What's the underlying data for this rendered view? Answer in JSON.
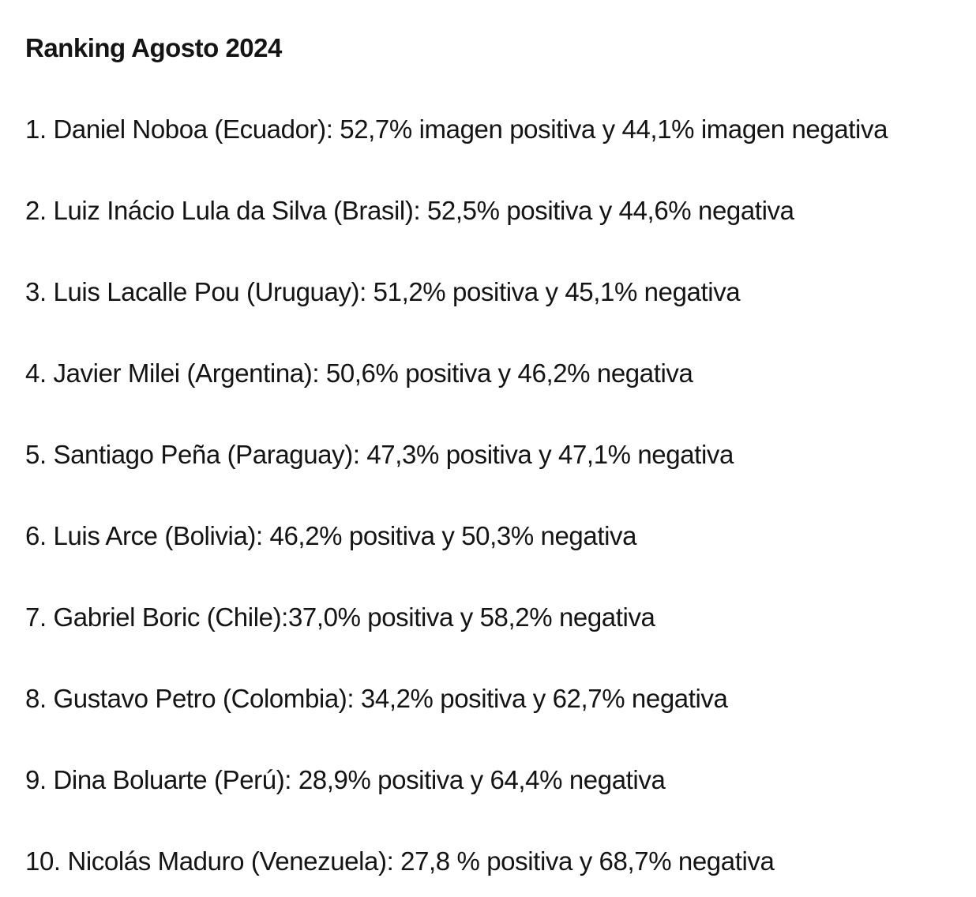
{
  "title": "Ranking Agosto 2024",
  "ranking": [
    {
      "text": "1. Daniel Noboa (Ecuador): 52,7% imagen positiva y 44,1% imagen negativa"
    },
    {
      "text": "2. Luiz Inácio Lula da Silva (Brasil): 52,5% positiva y 44,6% negativa"
    },
    {
      "text": "3. Luis Lacalle Pou (Uruguay): 51,2% positiva y 45,1% negativa"
    },
    {
      "text": "4. Javier Milei (Argentina): 50,6% positiva y 46,2% negativa"
    },
    {
      "text": "5. Santiago Peña (Paraguay): 47,3% positiva y 47,1% negativa"
    },
    {
      "text": "6. Luis Arce (Bolivia): 46,2% positiva y 50,3% negativa"
    },
    {
      "text": "7. Gabriel Boric (Chile):37,0% positiva y 58,2% negativa"
    },
    {
      "text": "8. Gustavo Petro (Colombia): 34,2% positiva y 62,7% negativa"
    },
    {
      "text": "9. Dina Boluarte (Perú): 28,9% positiva y 64,4% negativa"
    },
    {
      "text": "10. Nicolás Maduro (Venezuela): 27,8 % positiva y 68,7% negativa"
    }
  ]
}
